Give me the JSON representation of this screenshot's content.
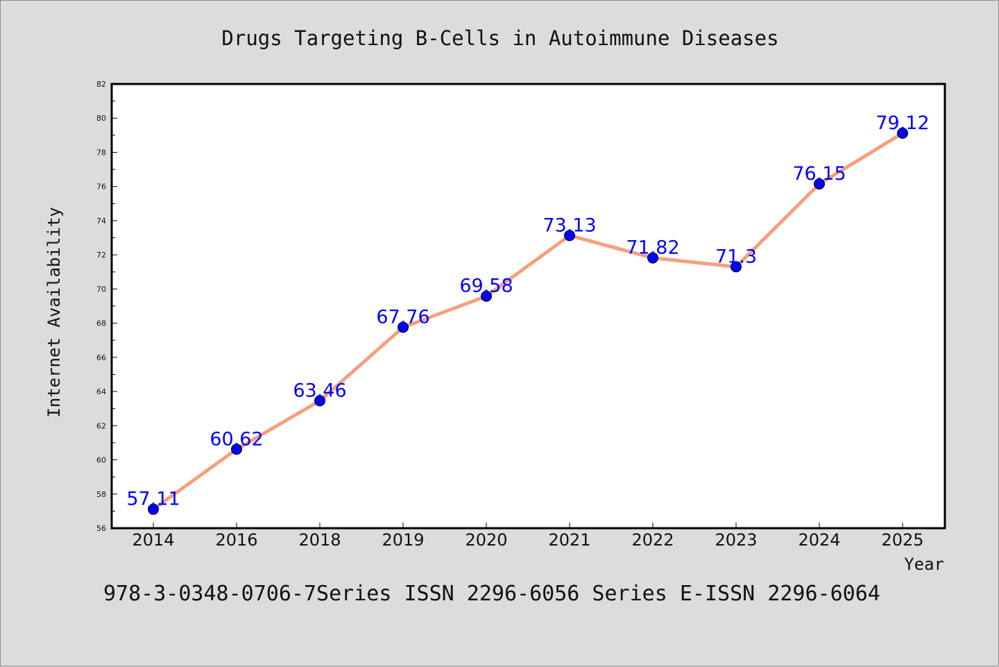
{
  "chart_data": {
    "type": "line",
    "title": "Drugs Targeting B-Cells in Autoimmune Diseases",
    "xlabel": "Year",
    "ylabel": "Internet Availability",
    "categories": [
      "2014",
      "2016",
      "2018",
      "2019",
      "2020",
      "2021",
      "2022",
      "2023",
      "2024",
      "2025"
    ],
    "series": [
      {
        "values": [
          57.11,
          60.62,
          63.46,
          67.76,
          69.58,
          73.13,
          71.82,
          71.3,
          76.15,
          79.12
        ],
        "labels": [
          "57.11",
          "60.62",
          "63.46",
          "67.76",
          "69.58",
          "73.13",
          "71.82",
          "71.3",
          "76.15",
          "79.12"
        ]
      }
    ],
    "yticks": [
      "56",
      "58",
      "60",
      "62",
      "64",
      "66",
      "68",
      "70",
      "72",
      "74",
      "76",
      "78",
      "80",
      "82"
    ],
    "ylim": [
      56,
      82
    ],
    "grid": false,
    "colors": {
      "line": "#f4a07c",
      "marker": "#0000ff",
      "label": "#0000ff",
      "background": "#dcdcdc",
      "plot_bg": "#ffffff"
    }
  },
  "footer": "978-3-0348-0706-7Series ISSN 2296-6056 Series E-ISSN 2296-6064"
}
